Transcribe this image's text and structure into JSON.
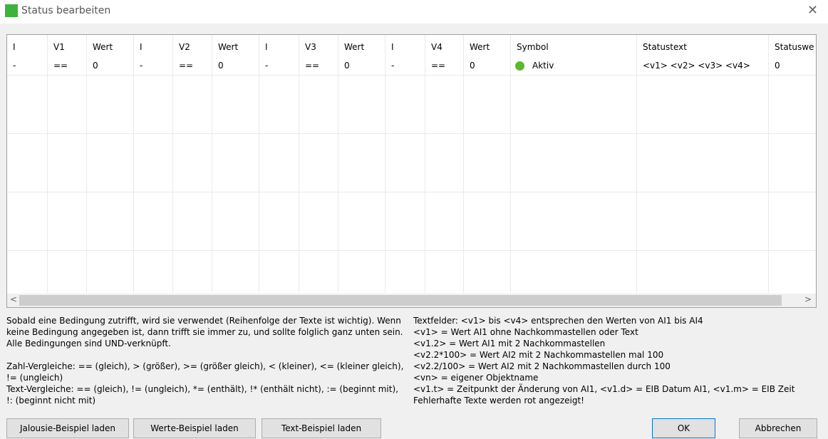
{
  "window": {
    "title": "Status bearbeiten"
  },
  "table": {
    "columns": [
      "I",
      "V1",
      "Wert",
      "I",
      "V2",
      "Wert",
      "I",
      "V3",
      "Wert",
      "I",
      "V4",
      "Wert",
      "Symbol",
      "Statustext",
      "Statuswe"
    ],
    "rows": [
      [
        "-",
        "==",
        "0",
        "-",
        "==",
        "0",
        "-",
        "==",
        "0",
        "-",
        "==",
        "0",
        "Aktiv",
        "<v1> <v2> <v3> <v4>",
        "0"
      ]
    ]
  },
  "help_left": [
    [
      "Sobald eine Bedingung zutrifft, wird sie verwendet (Reihenfolge der Texte ist wichtig). Wenn",
      "keine Bedingung angegeben ist, dann trifft sie immer zu, und sollte folglich ganz unten sein.",
      "Alle Bedingungen sind UND-verknüpft."
    ],
    [
      "Zahl-Vergleiche: == (gleich), > (größer), >= (größer gleich), < (kleiner), <= (kleiner gleich),",
      "!= (ungleich)",
      "Text-Vergleiche: == (gleich), != (ungleich), *= (enthält), !* (enthält nicht), := (beginnt mit),",
      "!: (beginnt nicht mit)"
    ]
  ],
  "help_right": [
    "Textfelder: <v1> bis <v4> entsprechen den Werten von AI1 bis AI4",
    "<v1> = Wert AI1 ohne Nachkommastellen oder Text",
    "<v1.2> = Wert AI1 mit 2 Nachkommastellen",
    "<v2.2*100> = Wert AI2 mit 2 Nachkommastellen mal 100",
    "<v2.2/100> = Wert AI2 mit 2 Nachkommastellen durch 100",
    "<vn> = eigener Objektname",
    "<v1.t> = Zeitpunkt der Änderung von AI1, <v1.d> = EIB Datum AI1, <v1.m> = EIB Zeit",
    "Fehlerhafte Texte werden rot angezeigt!"
  ],
  "buttons": {
    "left": [
      "Jalousie-Beispiel laden",
      "Werte-Beispiel laden",
      "Text-Beispiel laden"
    ],
    "right": [
      "OK",
      "Abbrechen"
    ]
  }
}
